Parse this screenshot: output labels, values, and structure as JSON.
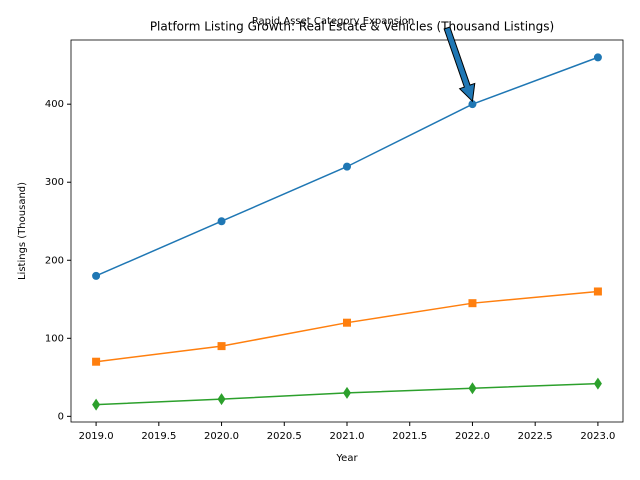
{
  "chart_data": {
    "type": "line",
    "title": "Platform Listing Growth: Real Estate & Vehicles (Thousand Listings)",
    "x_label": "Year",
    "y_label": "Listings (Thousand)",
    "x": [
      2019,
      2020,
      2021,
      2022,
      2023
    ],
    "series": [
      {
        "color": "#1f77b4",
        "marker": "circle",
        "values": [
          180,
          250,
          320,
          400,
          460
        ]
      },
      {
        "color": "#ff7f0e",
        "marker": "square",
        "values": [
          70,
          90,
          120,
          145,
          160
        ]
      },
      {
        "color": "#2ca02c",
        "marker": "diamond",
        "values": [
          15,
          22,
          30,
          36,
          42
        ]
      }
    ],
    "xlim": [
      2018.8,
      2023.2
    ],
    "xticks": [
      {
        "value": 2019,
        "label": "2019.0"
      },
      {
        "value": 2019.5,
        "label": "2019.5"
      },
      {
        "value": 2020,
        "label": "2020.0"
      },
      {
        "value": 2020.5,
        "label": "2020.5"
      },
      {
        "value": 2021,
        "label": "2021.0"
      },
      {
        "value": 2021.5,
        "label": "2021.5"
      },
      {
        "value": 2022,
        "label": "2022.0"
      },
      {
        "value": 2022.5,
        "label": "2022.5"
      },
      {
        "value": 2023,
        "label": "2023.0"
      }
    ],
    "ylim": [
      -7.25,
      482.25
    ],
    "yticks": [
      0,
      100,
      200,
      300,
      400
    ],
    "grid": false,
    "annotation": {
      "text": "Rapid Asset Category Expansion",
      "x": 2022,
      "y": 400,
      "color": "#1f77b4"
    }
  }
}
